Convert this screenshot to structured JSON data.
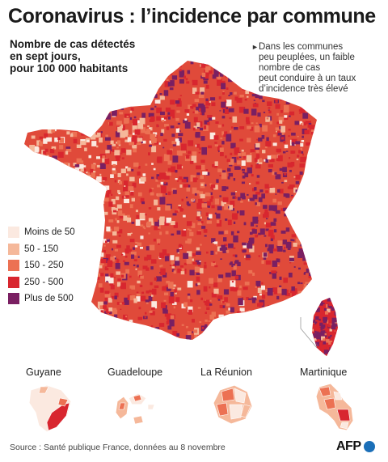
{
  "title": "Coronavirus : l’incidence par commune",
  "subtitle": [
    "Nombre de cas détectés",
    "en sept jours,",
    "pour 100 000 habitants"
  ],
  "note": [
    "Dans les communes",
    "peu peuplées, un faible",
    "nombre de cas",
    "peut conduire à un taux",
    "d’incidence très élevé"
  ],
  "legend": [
    {
      "label": "Moins de 50",
      "color": "#fbe9e0"
    },
    {
      "label": "50 - 150",
      "color": "#f5b89a"
    },
    {
      "label": "150 - 250",
      "color": "#ec7153"
    },
    {
      "label": "250 - 500",
      "color": "#d8262f"
    },
    {
      "label": "Plus de 500",
      "color": "#7a1f62"
    }
  ],
  "overseas": [
    {
      "name": "Guyane"
    },
    {
      "name": "Guadeloupe"
    },
    {
      "name": "La Réunion"
    },
    {
      "name": "Martinique"
    }
  ],
  "source": "Source : Santé publique France, données au 8 novembre",
  "logo_text": "AFP",
  "colors": {
    "accent": "#1b6fb8",
    "border": "#ffffff"
  }
}
